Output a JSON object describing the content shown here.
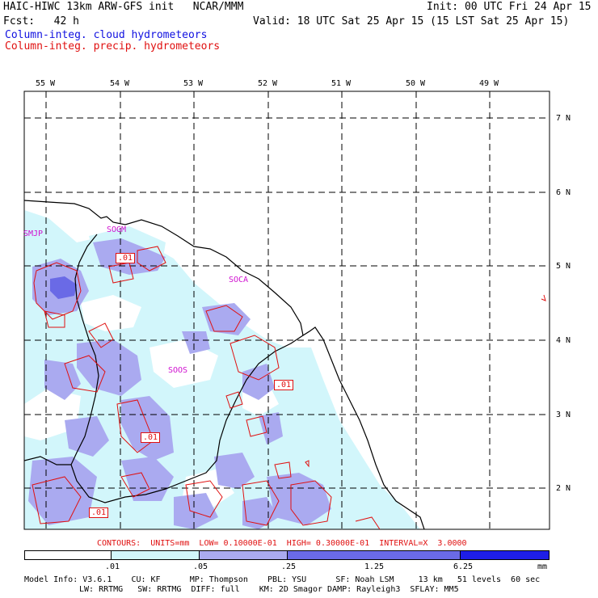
{
  "header": {
    "title_left": "HAIC-HIWC 13km ARW-GFS init   NCAR/MMM",
    "init": "Init: 00 UTC Fri 24 Apr 15",
    "fcst": "Fcst:   42 h",
    "valid": "Valid: 18 UTC Sat 25 Apr 15 (15 LST Sat 25 Apr 15)",
    "field_cloud": "Column-integ. cloud hydrometeors",
    "field_precip": "Column-integ. precip. hydrometeors"
  },
  "map": {
    "lon_labels": [
      "55 W",
      "54 W",
      "53 W",
      "52 W",
      "51 W",
      "50 W",
      "49 W"
    ],
    "lat_labels": [
      "7 N",
      "6 N",
      "5 N",
      "4 N",
      "3 N",
      "2 N"
    ],
    "stations": [
      "SMJP",
      "SOGM",
      "SOCA",
      "SOOS"
    ],
    "contour_labels": [
      ".01",
      ".01",
      ".01",
      ".01"
    ]
  },
  "contour_info": "CONTOURS:  UNITS=mm  LOW= 0.10000E-01  HIGH= 0.30000E-01  INTERVAL=X  3.0000",
  "colorbar": {
    "ticks": [
      ".01",
      ".05",
      ".25",
      "1.25",
      "6.25"
    ],
    "units": "mm",
    "colors": [
      "#ffffff",
      "#d2f6fb",
      "#aaaaf0",
      "#6a6ae6",
      "#1e1ee6"
    ]
  },
  "model_info": {
    "line1": "Model Info: V3.6.1    CU: KF      MP: Thompson    PBL: YSU      SF: Noah LSM     13 km   51 levels  60 sec",
    "line2": "LW: RRTMG   SW: RRTMG  DIFF: full    KM: 2D Smagor DAMP: Rayleigh3  SFLAY: MM5"
  },
  "colors": {
    "cloud": "#1010e0",
    "precip": "#e01010",
    "station": "#d010d0"
  }
}
